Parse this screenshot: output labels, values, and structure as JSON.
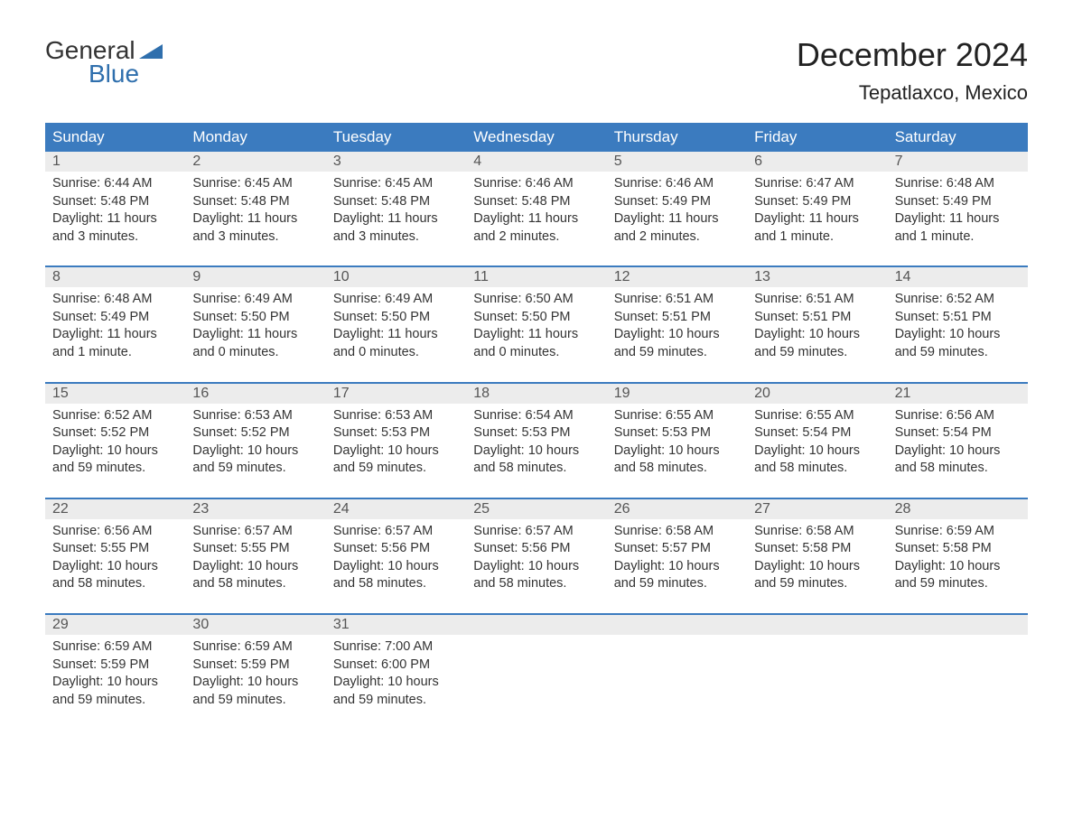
{
  "logo": {
    "text_general": "General",
    "text_blue": "Blue"
  },
  "title": "December 2024",
  "location": "Tepatlaxco, Mexico",
  "colors": {
    "header_bg": "#3b7bbf",
    "header_text": "#ffffff",
    "daynum_bg": "#ececec",
    "daynum_text": "#555555",
    "body_text": "#333333",
    "logo_blue": "#2f6fad",
    "week_border": "#3b7bbf"
  },
  "weekdays": [
    "Sunday",
    "Monday",
    "Tuesday",
    "Wednesday",
    "Thursday",
    "Friday",
    "Saturday"
  ],
  "weeks": [
    [
      {
        "day": "1",
        "sunrise": "6:44 AM",
        "sunset": "5:48 PM",
        "daylight": "11 hours and 3 minutes."
      },
      {
        "day": "2",
        "sunrise": "6:45 AM",
        "sunset": "5:48 PM",
        "daylight": "11 hours and 3 minutes."
      },
      {
        "day": "3",
        "sunrise": "6:45 AM",
        "sunset": "5:48 PM",
        "daylight": "11 hours and 3 minutes."
      },
      {
        "day": "4",
        "sunrise": "6:46 AM",
        "sunset": "5:48 PM",
        "daylight": "11 hours and 2 minutes."
      },
      {
        "day": "5",
        "sunrise": "6:46 AM",
        "sunset": "5:49 PM",
        "daylight": "11 hours and 2 minutes."
      },
      {
        "day": "6",
        "sunrise": "6:47 AM",
        "sunset": "5:49 PM",
        "daylight": "11 hours and 1 minute."
      },
      {
        "day": "7",
        "sunrise": "6:48 AM",
        "sunset": "5:49 PM",
        "daylight": "11 hours and 1 minute."
      }
    ],
    [
      {
        "day": "8",
        "sunrise": "6:48 AM",
        "sunset": "5:49 PM",
        "daylight": "11 hours and 1 minute."
      },
      {
        "day": "9",
        "sunrise": "6:49 AM",
        "sunset": "5:50 PM",
        "daylight": "11 hours and 0 minutes."
      },
      {
        "day": "10",
        "sunrise": "6:49 AM",
        "sunset": "5:50 PM",
        "daylight": "11 hours and 0 minutes."
      },
      {
        "day": "11",
        "sunrise": "6:50 AM",
        "sunset": "5:50 PM",
        "daylight": "11 hours and 0 minutes."
      },
      {
        "day": "12",
        "sunrise": "6:51 AM",
        "sunset": "5:51 PM",
        "daylight": "10 hours and 59 minutes."
      },
      {
        "day": "13",
        "sunrise": "6:51 AM",
        "sunset": "5:51 PM",
        "daylight": "10 hours and 59 minutes."
      },
      {
        "day": "14",
        "sunrise": "6:52 AM",
        "sunset": "5:51 PM",
        "daylight": "10 hours and 59 minutes."
      }
    ],
    [
      {
        "day": "15",
        "sunrise": "6:52 AM",
        "sunset": "5:52 PM",
        "daylight": "10 hours and 59 minutes."
      },
      {
        "day": "16",
        "sunrise": "6:53 AM",
        "sunset": "5:52 PM",
        "daylight": "10 hours and 59 minutes."
      },
      {
        "day": "17",
        "sunrise": "6:53 AM",
        "sunset": "5:53 PM",
        "daylight": "10 hours and 59 minutes."
      },
      {
        "day": "18",
        "sunrise": "6:54 AM",
        "sunset": "5:53 PM",
        "daylight": "10 hours and 58 minutes."
      },
      {
        "day": "19",
        "sunrise": "6:55 AM",
        "sunset": "5:53 PM",
        "daylight": "10 hours and 58 minutes."
      },
      {
        "day": "20",
        "sunrise": "6:55 AM",
        "sunset": "5:54 PM",
        "daylight": "10 hours and 58 minutes."
      },
      {
        "day": "21",
        "sunrise": "6:56 AM",
        "sunset": "5:54 PM",
        "daylight": "10 hours and 58 minutes."
      }
    ],
    [
      {
        "day": "22",
        "sunrise": "6:56 AM",
        "sunset": "5:55 PM",
        "daylight": "10 hours and 58 minutes."
      },
      {
        "day": "23",
        "sunrise": "6:57 AM",
        "sunset": "5:55 PM",
        "daylight": "10 hours and 58 minutes."
      },
      {
        "day": "24",
        "sunrise": "6:57 AM",
        "sunset": "5:56 PM",
        "daylight": "10 hours and 58 minutes."
      },
      {
        "day": "25",
        "sunrise": "6:57 AM",
        "sunset": "5:56 PM",
        "daylight": "10 hours and 58 minutes."
      },
      {
        "day": "26",
        "sunrise": "6:58 AM",
        "sunset": "5:57 PM",
        "daylight": "10 hours and 59 minutes."
      },
      {
        "day": "27",
        "sunrise": "6:58 AM",
        "sunset": "5:58 PM",
        "daylight": "10 hours and 59 minutes."
      },
      {
        "day": "28",
        "sunrise": "6:59 AM",
        "sunset": "5:58 PM",
        "daylight": "10 hours and 59 minutes."
      }
    ],
    [
      {
        "day": "29",
        "sunrise": "6:59 AM",
        "sunset": "5:59 PM",
        "daylight": "10 hours and 59 minutes."
      },
      {
        "day": "30",
        "sunrise": "6:59 AM",
        "sunset": "5:59 PM",
        "daylight": "10 hours and 59 minutes."
      },
      {
        "day": "31",
        "sunrise": "7:00 AM",
        "sunset": "6:00 PM",
        "daylight": "10 hours and 59 minutes."
      },
      null,
      null,
      null,
      null
    ]
  ],
  "labels": {
    "sunrise": "Sunrise:",
    "sunset": "Sunset:",
    "daylight": "Daylight:"
  }
}
